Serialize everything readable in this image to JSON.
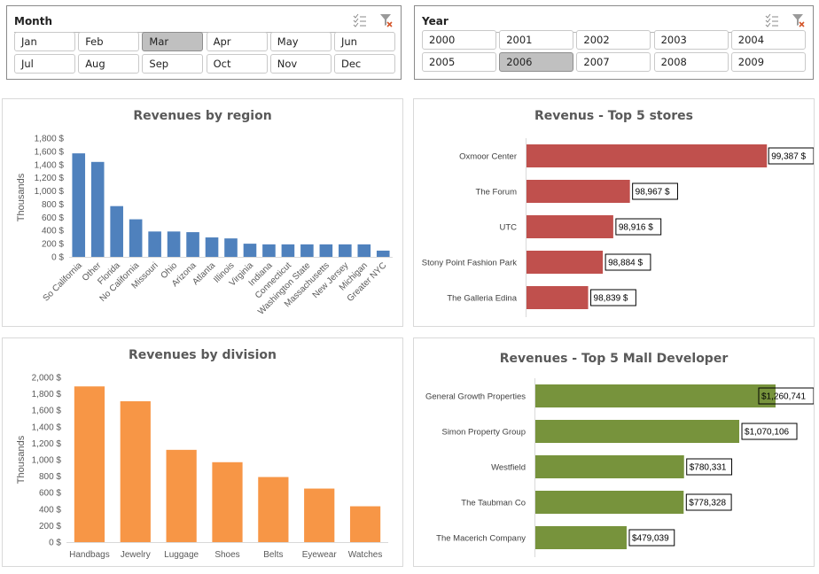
{
  "month_slicer": {
    "title": "Month",
    "items": [
      "Jan",
      "Feb",
      "Mar",
      "Apr",
      "May",
      "Jun",
      "Jul",
      "Aug",
      "Sep",
      "Oct",
      "Nov",
      "Dec"
    ],
    "selected": "Mar",
    "multiselect_icon": "multi-select-icon",
    "clear_filter_icon": "clear-filter-icon"
  },
  "year_slicer": {
    "title": "Year",
    "items": [
      "2000",
      "2001",
      "2002",
      "2003",
      "2004",
      "2005",
      "2006",
      "2007",
      "2008",
      "2009"
    ],
    "selected": "2006",
    "multiselect_icon": "multi-select-icon",
    "clear_filter_icon": "clear-filter-icon"
  },
  "chart_data": [
    {
      "type": "bar",
      "title": "Revenues by region",
      "ylabel": "Thousands",
      "xlabel": "",
      "color": "#4f81bd",
      "ylim": [
        0,
        1800
      ],
      "yticks": [
        0,
        200,
        400,
        600,
        800,
        1000,
        1200,
        1400,
        1600,
        1800
      ],
      "ytick_labels": [
        "0 $",
        "200 $",
        "400 $",
        "600 $",
        "800 $",
        "1,000 $",
        "1,200 $",
        "1,400 $",
        "1,600 $",
        "1,800 $"
      ],
      "categories": [
        "So California",
        "Other",
        "Florida",
        "No California",
        "Missouri",
        "Ohio",
        "Arizona",
        "Atlanta",
        "Illinois",
        "Virginia",
        "Indiana",
        "Connecticut",
        "Washington State",
        "Massachusetts",
        "New Jersey",
        "Michigan",
        "Greater NYC"
      ],
      "values": [
        1570,
        1440,
        770,
        570,
        385,
        385,
        375,
        295,
        280,
        200,
        190,
        190,
        190,
        190,
        190,
        190,
        95
      ]
    },
    {
      "type": "bar",
      "orientation": "horizontal",
      "title": "Revenus - Top 5 stores",
      "color": "#c0504d",
      "categories": [
        "Oxmoor Center",
        "The Forum",
        "UTC",
        "Stony Point Fashion Park",
        "The Galleria Edina"
      ],
      "values": [
        99387,
        98967,
        98916,
        98884,
        98839
      ],
      "data_labels": [
        "99,387 $",
        "98,967 $",
        "98,916 $",
        "98,884 $",
        "98,839 $"
      ],
      "xlim": [
        98650,
        99400
      ]
    },
    {
      "type": "bar",
      "title": "Revenues by division",
      "ylabel": "Thousands",
      "xlabel": "",
      "color": "#f79646",
      "ylim": [
        0,
        2000
      ],
      "yticks": [
        0,
        200,
        400,
        600,
        800,
        1000,
        1200,
        1400,
        1600,
        1800,
        2000
      ],
      "ytick_labels": [
        "0 $",
        "200 $",
        "400 $",
        "600 $",
        "800 $",
        "1,000 $",
        "1,200 $",
        "1,400 $",
        "1,600 $",
        "1,800 $",
        "2,000 $"
      ],
      "categories": [
        "Handbags",
        "Jewelry",
        "Luggage",
        "Shoes",
        "Belts",
        "Eyewear",
        "Watches"
      ],
      "values": [
        1890,
        1710,
        1120,
        970,
        790,
        650,
        435
      ]
    },
    {
      "type": "bar",
      "orientation": "horizontal",
      "title": "Revenues - Top 5 Mall Developer",
      "color": "#77933c",
      "categories": [
        "General Growth Properties",
        "Simon Property Group",
        "Westfield",
        "The Taubman Co",
        "The Macerich Company"
      ],
      "values": [
        1260741,
        1070106,
        780331,
        778328,
        479039
      ],
      "data_labels": [
        "$1,260,741",
        "$1,070,106",
        "$780,331",
        "$778,328",
        "$479,039"
      ],
      "xlim": [
        0,
        1260741
      ]
    }
  ]
}
